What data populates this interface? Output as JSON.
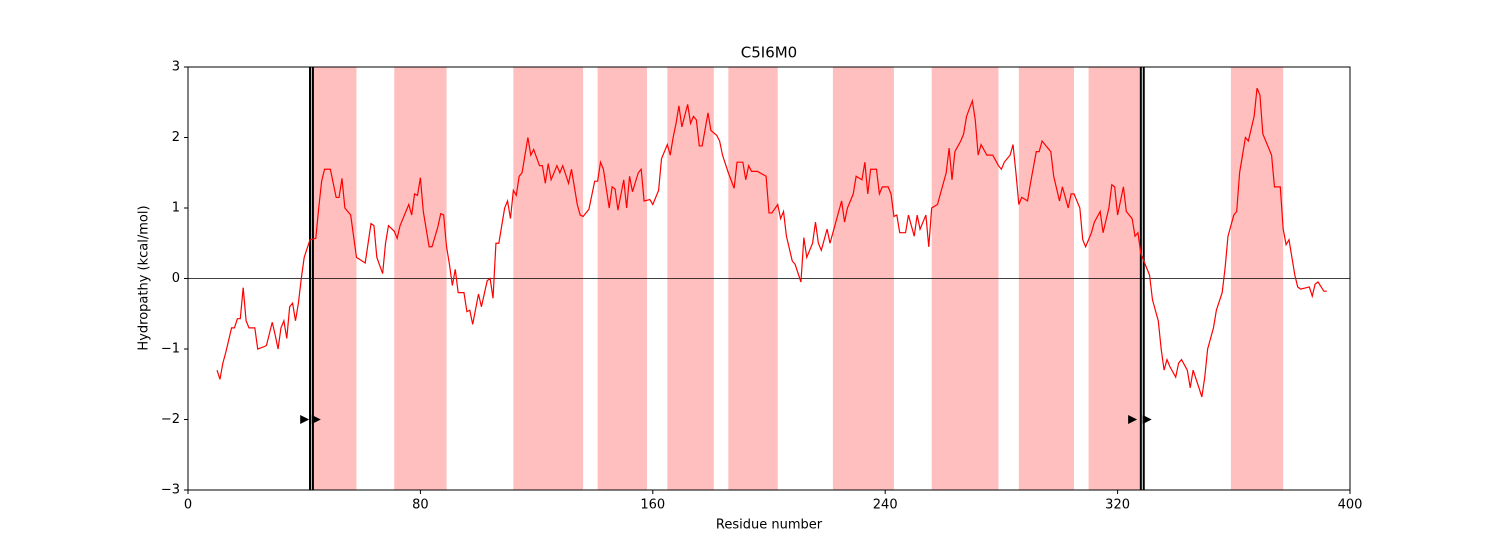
{
  "chart_data": {
    "type": "line",
    "title": "C5I6M0",
    "xlabel": "Residue number",
    "ylabel": "Hydropathy (kcal/mol)",
    "color": "#ff0000",
    "span_color": "#ffbfbf",
    "xlim": [
      0,
      400
    ],
    "ylim": [
      -3,
      3
    ],
    "xticks": [
      0,
      80,
      160,
      240,
      320,
      400
    ],
    "yticks": [
      {
        "value": -3,
        "label": "−3"
      },
      {
        "value": -2,
        "label": "−2"
      },
      {
        "value": -1,
        "label": "−1"
      },
      0,
      1,
      2,
      3
    ],
    "hline": 0,
    "spans": [
      [
        42,
        58
      ],
      [
        71,
        89
      ],
      [
        112,
        136
      ],
      [
        141,
        158
      ],
      [
        165,
        181
      ],
      [
        186,
        203
      ],
      [
        222,
        243
      ],
      [
        256,
        279
      ],
      [
        286,
        305
      ],
      [
        310,
        328
      ],
      [
        359,
        377
      ]
    ],
    "vlines": [
      42,
      43,
      328,
      329
    ],
    "markers": [
      {
        "x": 40,
        "y": -2
      },
      {
        "x": 44,
        "y": -2
      },
      {
        "x": 325,
        "y": -2
      },
      {
        "x": 330,
        "y": -2
      }
    ],
    "x": [
      10,
      11,
      12,
      13,
      15,
      16,
      17,
      18,
      19,
      20,
      21,
      23,
      24,
      26,
      27,
      29,
      30,
      31,
      32,
      33,
      34,
      35,
      36,
      37,
      38,
      39,
      40,
      42,
      44,
      45,
      46,
      47,
      49,
      51,
      52,
      53,
      54,
      56,
      57,
      58,
      61,
      62,
      63,
      64,
      65,
      67,
      68,
      69,
      71,
      72,
      73,
      74,
      76,
      77,
      78,
      79,
      80,
      81,
      83,
      84,
      86,
      87,
      88,
      89,
      90,
      91,
      92,
      93,
      95,
      96,
      97,
      98,
      100,
      101,
      103,
      104,
      105,
      106,
      107,
      109,
      110,
      111,
      112,
      113,
      114,
      115,
      117,
      118,
      119,
      121,
      122,
      123,
      124,
      125,
      127,
      128,
      129,
      131,
      132,
      134,
      135,
      136,
      138,
      140,
      141,
      142,
      143,
      145,
      146,
      147,
      148,
      150,
      151,
      152,
      153,
      155,
      156,
      157,
      159,
      160,
      162,
      163,
      165,
      166,
      167,
      168,
      169,
      170,
      172,
      173,
      174,
      175,
      176,
      177,
      179,
      180,
      182,
      183,
      184,
      186,
      188,
      189,
      191,
      192,
      193,
      194,
      196,
      199,
      200,
      201,
      203,
      204,
      205,
      206,
      208,
      209,
      211,
      212,
      213,
      215,
      216,
      217,
      218,
      220,
      221,
      222,
      223,
      225,
      226,
      227,
      229,
      230,
      232,
      233,
      234,
      235,
      237,
      238,
      239,
      241,
      242,
      243,
      244,
      245,
      247,
      248,
      250,
      251,
      252,
      254,
      255,
      256,
      258,
      259,
      261,
      262,
      263,
      264,
      266,
      267,
      268,
      270,
      271,
      272,
      273,
      275,
      276,
      277,
      279,
      280,
      281,
      283,
      284,
      285,
      286,
      287,
      289,
      290,
      292,
      293,
      294,
      296,
      297,
      298,
      300,
      301,
      303,
      304,
      305,
      307,
      308,
      309,
      311,
      312,
      314,
      315,
      317,
      318,
      319,
      320,
      322,
      323,
      325,
      326,
      327,
      328,
      329,
      331,
      332,
      334,
      335,
      336,
      337,
      338,
      340,
      341,
      342,
      344,
      345,
      346,
      348,
      349,
      350,
      351,
      353,
      354,
      356,
      357,
      358,
      360,
      361,
      362,
      364,
      365,
      367,
      368,
      369,
      370,
      372,
      373,
      374,
      376,
      377,
      378,
      379,
      381,
      382,
      383,
      385,
      386,
      387,
      388,
      389,
      391,
      392
    ],
    "values": [
      -1.3,
      -1.43,
      -1.2,
      -1.05,
      -0.7,
      -0.7,
      -0.57,
      -0.57,
      -0.13,
      -0.6,
      -0.7,
      -0.7,
      -1.0,
      -0.97,
      -0.95,
      -0.62,
      -0.8,
      -1.0,
      -0.7,
      -0.6,
      -0.85,
      -0.4,
      -0.35,
      -0.6,
      -0.35,
      0,
      0.3,
      0.55,
      0.57,
      1.0,
      1.38,
      1.55,
      1.55,
      1.15,
      1.15,
      1.42,
      1.0,
      0.9,
      0.6,
      0.3,
      0.22,
      0.5,
      0.78,
      0.75,
      0.3,
      0.07,
      0.5,
      0.75,
      0.67,
      0.57,
      0.75,
      0.85,
      1.05,
      0.9,
      1.2,
      1.18,
      1.43,
      0.95,
      0.45,
      0.45,
      0.73,
      0.92,
      0.9,
      0.45,
      0.2,
      -0.1,
      0.13,
      -0.2,
      -0.2,
      -0.47,
      -0.45,
      -0.65,
      -0.22,
      -0.4,
      -0.03,
      0,
      -0.28,
      0.5,
      0.5,
      1.0,
      1.1,
      0.85,
      1.25,
      1.18,
      1.45,
      1.5,
      2.0,
      1.75,
      1.83,
      1.6,
      1.6,
      1.35,
      1.63,
      1.4,
      1.6,
      1.5,
      1.6,
      1.35,
      1.55,
      1.05,
      0.9,
      0.88,
      0.98,
      1.38,
      1.38,
      1.65,
      1.55,
      1.0,
      1.3,
      1.27,
      0.97,
      1.4,
      1.0,
      1.45,
      1.23,
      1.5,
      1.55,
      1.1,
      1.12,
      1.05,
      1.25,
      1.7,
      1.9,
      1.75,
      2.0,
      2.2,
      2.45,
      2.15,
      2.47,
      2.2,
      2.3,
      2.25,
      1.88,
      1.88,
      2.35,
      2.1,
      2.03,
      1.95,
      1.75,
      1.5,
      1.28,
      1.65,
      1.65,
      1.4,
      1.6,
      1.52,
      1.52,
      1.45,
      0.93,
      0.93,
      1.05,
      0.85,
      0.95,
      0.6,
      0.25,
      0.2,
      -0.05,
      0.58,
      0.3,
      0.5,
      0.8,
      0.5,
      0.4,
      0.7,
      0.5,
      0.65,
      0.8,
      1.1,
      0.8,
      1.0,
      1.2,
      1.45,
      1.4,
      1.65,
      1.2,
      1.55,
      1.55,
      1.2,
      1.3,
      1.3,
      1.2,
      0.88,
      0.9,
      0.65,
      0.65,
      0.9,
      0.6,
      0.9,
      0.7,
      0.9,
      0.45,
      1.0,
      1.05,
      1.2,
      1.5,
      1.85,
      1.4,
      1.8,
      1.95,
      2.05,
      2.3,
      2.52,
      2.25,
      1.75,
      1.9,
      1.75,
      1.75,
      1.75,
      1.6,
      1.55,
      1.65,
      1.75,
      1.9,
      1.5,
      1.05,
      1.15,
      1.1,
      1.35,
      1.8,
      1.8,
      1.95,
      1.85,
      1.8,
      1.45,
      1.1,
      1.3,
      1.0,
      1.2,
      1.2,
      1.0,
      0.55,
      0.45,
      0.65,
      0.8,
      0.95,
      0.65,
      1.0,
      1.33,
      1.3,
      0.9,
      1.3,
      0.95,
      0.85,
      0.6,
      0.65,
      0.35,
      0.25,
      0.05,
      -0.3,
      -0.6,
      -1.0,
      -1.3,
      -1.15,
      -1.25,
      -1.4,
      -1.2,
      -1.15,
      -1.3,
      -1.55,
      -1.3,
      -1.55,
      -1.68,
      -1.4,
      -1.0,
      -0.7,
      -0.45,
      -0.2,
      0.15,
      0.6,
      0.9,
      0.95,
      1.5,
      2.0,
      1.95,
      2.3,
      2.7,
      2.6,
      2.05,
      1.85,
      1.75,
      1.3,
      1.3,
      0.7,
      0.48,
      0.55,
      0.05,
      -0.12,
      -0.15,
      -0.13,
      -0.12,
      -0.25,
      -0.08,
      -0.05,
      -0.18,
      -0.18
    ]
  }
}
